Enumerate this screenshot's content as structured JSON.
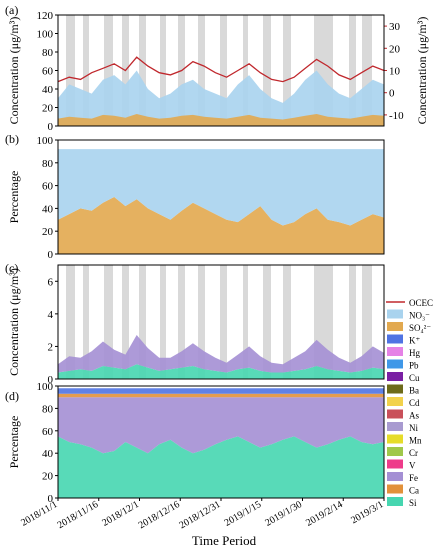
{
  "figure": {
    "x_title": "Time Period",
    "legend": [
      {
        "label": "OCEC",
        "color": "#c0282d",
        "kind": "line"
      },
      {
        "label": "NO₃⁻",
        "color": "#a9d3ee",
        "kind": "box"
      },
      {
        "label": "SO₄²⁻",
        "color": "#e2a94f",
        "kind": "box"
      },
      {
        "label": "K⁺",
        "color": "#4f73e3",
        "kind": "box"
      },
      {
        "label": "Hg",
        "color": "#e582e6",
        "kind": "box"
      },
      {
        "label": "Pb",
        "color": "#3f98e8",
        "kind": "box"
      },
      {
        "label": "Cu",
        "color": "#7a1fa3",
        "kind": "box"
      },
      {
        "label": "Ba",
        "color": "#6d6a1a",
        "kind": "box"
      },
      {
        "label": "Cd",
        "color": "#f2d24c",
        "kind": "box"
      },
      {
        "label": "As",
        "color": "#c9505a",
        "kind": "box"
      },
      {
        "label": "Ni",
        "color": "#a89ad0",
        "kind": "box"
      },
      {
        "label": "Mn",
        "color": "#e6dc2a",
        "kind": "box"
      },
      {
        "label": "Cr",
        "color": "#a0c84a",
        "kind": "box"
      },
      {
        "label": "V",
        "color": "#ee3b8a",
        "kind": "box"
      },
      {
        "label": "Fe",
        "color": "#a48fd4",
        "kind": "box"
      },
      {
        "label": "Ca",
        "color": "#e2913a",
        "kind": "box"
      },
      {
        "label": "Si",
        "color": "#46d6b0",
        "kind": "box"
      }
    ]
  },
  "chart_data": [
    {
      "panel": "(a)",
      "type": "area",
      "ylabel": "Concentration (μg/m³)",
      "ylim": [
        0,
        120
      ],
      "yticks": [
        0,
        20,
        40,
        60,
        80,
        100,
        120
      ],
      "y2label": "Concentration (μg/m³)",
      "y2lim": [
        -15,
        35
      ],
      "y2ticks": [
        -10,
        0,
        10,
        20,
        30
      ],
      "x_ticks": [
        "2018/11/1",
        "2018/11/16",
        "2018/12/1",
        "2018/12/16",
        "2018/12/31",
        "2019/1/15",
        "2019/1/30",
        "2019/2/14",
        "2019/3/1"
      ],
      "series": [
        {
          "name": "NO₃⁻",
          "color": "#a9d3ee",
          "values": [
            30,
            45,
            40,
            35,
            50,
            55,
            45,
            60,
            40,
            30,
            35,
            45,
            50,
            40,
            35,
            30,
            45,
            55,
            40,
            30,
            25,
            35,
            50,
            60,
            45,
            35,
            30,
            40,
            50,
            45
          ]
        },
        {
          "name": "SO₄²⁻",
          "color": "#e2a94f",
          "values": [
            8,
            10,
            9,
            8,
            12,
            11,
            9,
            13,
            10,
            8,
            9,
            11,
            12,
            10,
            9,
            8,
            10,
            12,
            9,
            8,
            7,
            9,
            11,
            13,
            10,
            9,
            8,
            10,
            12,
            11
          ]
        },
        {
          "name": "OCEC",
          "color": "#c0282d",
          "type": "line",
          "axis": "right",
          "values": [
            5,
            7,
            6,
            9,
            11,
            13,
            10,
            16,
            12,
            9,
            8,
            10,
            14,
            12,
            9,
            7,
            10,
            13,
            9,
            6,
            5,
            7,
            11,
            15,
            12,
            8,
            6,
            9,
            12,
            10
          ]
        }
      ]
    },
    {
      "panel": "(b)",
      "type": "area",
      "ylabel": "Percentage",
      "ylim": [
        0,
        100
      ],
      "yticks": [
        0,
        20,
        40,
        60,
        80,
        100
      ],
      "series": [
        {
          "name": "SO₄²⁻",
          "color": "#e2a94f",
          "values": [
            30,
            35,
            40,
            38,
            45,
            50,
            42,
            48,
            40,
            35,
            30,
            38,
            45,
            40,
            35,
            30,
            28,
            35,
            42,
            30,
            25,
            28,
            35,
            40,
            30,
            28,
            25,
            30,
            35,
            32
          ]
        },
        {
          "name": "NO₃⁻",
          "color": "#a9d3ee",
          "values": [
            62,
            57,
            52,
            54,
            47,
            42,
            50,
            44,
            52,
            57,
            62,
            54,
            47,
            52,
            57,
            62,
            64,
            57,
            50,
            62,
            67,
            64,
            57,
            52,
            62,
            64,
            67,
            62,
            57,
            60
          ]
        }
      ]
    },
    {
      "panel": "(c)",
      "type": "area",
      "ylabel": "Concentration (μg/m³)",
      "ylim": [
        0,
        7
      ],
      "yticks": [
        0,
        2,
        4,
        6
      ],
      "series": [
        {
          "name": "Si",
          "color": "#46d6b0",
          "values": [
            0.4,
            0.5,
            0.6,
            0.5,
            0.8,
            0.7,
            0.6,
            0.9,
            0.7,
            0.5,
            0.6,
            0.7,
            0.8,
            0.6,
            0.5,
            0.4,
            0.6,
            0.7,
            0.5,
            0.4,
            0.4,
            0.5,
            0.6,
            0.8,
            0.6,
            0.5,
            0.4,
            0.5,
            0.7,
            0.6
          ]
        },
        {
          "name": "Fe",
          "color": "#a48fd4",
          "values": [
            0.5,
            0.9,
            0.7,
            1.2,
            1.5,
            1.1,
            0.9,
            1.8,
            1.2,
            0.8,
            0.7,
            1.0,
            1.4,
            1.1,
            0.8,
            0.6,
            0.9,
            1.3,
            0.9,
            0.6,
            0.5,
            0.8,
            1.1,
            1.6,
            1.2,
            0.8,
            0.6,
            0.9,
            1.3,
            1.0
          ]
        }
      ]
    },
    {
      "panel": "(d)",
      "type": "area",
      "ylabel": "Percentage",
      "ylim": [
        0,
        100
      ],
      "yticks": [
        0,
        20,
        40,
        60,
        80,
        100
      ],
      "series": [
        {
          "name": "Si",
          "color": "#46d6b0",
          "values": [
            55,
            50,
            48,
            45,
            40,
            42,
            50,
            45,
            40,
            48,
            52,
            45,
            40,
            43,
            48,
            52,
            55,
            50,
            45,
            48,
            52,
            55,
            50,
            45,
            48,
            52,
            55,
            50,
            48,
            50
          ]
        },
        {
          "name": "Fe",
          "color": "#a48fd4",
          "values": [
            35,
            40,
            42,
            45,
            50,
            48,
            40,
            45,
            50,
            42,
            38,
            45,
            50,
            47,
            42,
            38,
            35,
            40,
            45,
            42,
            38,
            35,
            40,
            45,
            42,
            38,
            35,
            40,
            42,
            40
          ]
        },
        {
          "name": "Ca",
          "color": "#e2913a",
          "values": [
            3,
            3,
            3,
            3,
            3,
            3,
            3,
            3,
            3,
            3,
            3,
            3,
            3,
            3,
            3,
            3,
            3,
            3,
            3,
            3,
            3,
            3,
            3,
            3,
            3,
            3,
            3,
            3,
            3,
            3
          ]
        },
        {
          "name": "K⁺",
          "color": "#4f73e3",
          "values": [
            5,
            5,
            5,
            5,
            5,
            5,
            5,
            5,
            5,
            5,
            5,
            5,
            5,
            5,
            5,
            5,
            5,
            5,
            5,
            5,
            5,
            5,
            5,
            5,
            5,
            5,
            5,
            5,
            5,
            5
          ]
        }
      ]
    }
  ]
}
